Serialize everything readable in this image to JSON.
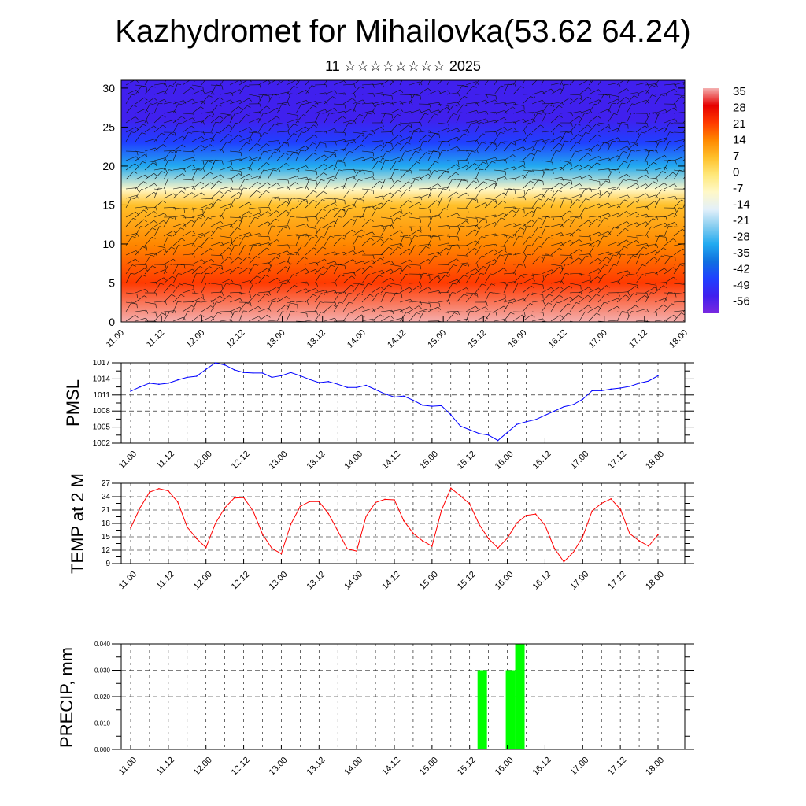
{
  "header": {
    "title": "Kazhydromet for Mihailovka(53.62 64.24)",
    "subtitle": "11 ☆☆☆☆☆☆☆☆ 2025"
  },
  "chart_data": [
    {
      "type": "heatmap",
      "name": "Temperature cross-section with wind barbs",
      "x_tick_labels": [
        "11.00",
        "11.12",
        "12.00",
        "12.12",
        "13.00",
        "13.12",
        "14.00",
        "14.12",
        "15.00",
        "15.12",
        "16.00",
        "16.12",
        "17.00",
        "17.12",
        "18.00"
      ],
      "y_ticks": [
        0,
        5,
        10,
        15,
        20,
        25,
        30
      ],
      "ylim": [
        0,
        31
      ],
      "colorbar_labels": [
        "35",
        "28",
        "21",
        "14",
        "7",
        "0",
        "-7",
        "-14",
        "-21",
        "-28",
        "-35",
        "-42",
        "-49",
        "-56"
      ],
      "colorbar_colors": [
        "#f4b0b0",
        "#e60000",
        "#ff3a00",
        "#ff8800",
        "#ffc02a",
        "#ffe87a",
        "#fff8c8",
        "#e3f0fa",
        "#86cdf0",
        "#22aaf0",
        "#1070e0",
        "#2040ff",
        "#4020ee",
        "#7a28e0"
      ],
      "layer_temps_by_height": [
        [
          0,
          28
        ],
        [
          5,
          20
        ],
        [
          10,
          12
        ],
        [
          15,
          2
        ],
        [
          17,
          -14
        ],
        [
          20,
          -30
        ],
        [
          23,
          -45
        ],
        [
          26,
          -52
        ],
        [
          31,
          -55
        ]
      ],
      "barbs": true
    },
    {
      "type": "line",
      "ylabel": "PMSL",
      "color": "#0000ff",
      "x_tick_labels": [
        "11.00",
        "11.12",
        "12.00",
        "12.12",
        "13.00",
        "13.12",
        "14.00",
        "14.12",
        "15.00",
        "15.12",
        "16.00",
        "16.12",
        "17.00",
        "17.12",
        "18.00"
      ],
      "y_ticks": [
        1002,
        1005,
        1008,
        1011,
        1014,
        1017
      ],
      "ylim": [
        1002,
        1017
      ],
      "x": [
        0,
        3,
        6,
        9,
        12,
        15,
        18,
        21,
        24,
        27,
        30,
        33,
        36,
        39,
        42,
        45,
        48,
        51,
        54,
        57,
        60,
        63,
        66,
        69,
        72,
        75,
        78,
        81,
        84,
        87,
        90,
        93,
        96,
        99,
        102,
        105,
        108,
        111,
        114,
        117,
        120,
        123,
        126,
        129,
        132,
        135,
        138,
        141,
        144,
        147,
        150,
        153,
        156,
        159,
        162,
        165,
        168
      ],
      "values": [
        1011.7,
        1012.5,
        1013.2,
        1013.0,
        1013.2,
        1013.8,
        1014.3,
        1014.5,
        1015.8,
        1017.0,
        1016.6,
        1015.7,
        1015.2,
        1015.1,
        1015.1,
        1014.3,
        1014.6,
        1015.2,
        1014.6,
        1013.9,
        1013.3,
        1013.5,
        1013.0,
        1012.4,
        1012.4,
        1012.8,
        1012.0,
        1011.2,
        1010.6,
        1010.8,
        1010.0,
        1009.1,
        1008.9,
        1009.0,
        1007.3,
        1005.2,
        1004.5,
        1003.8,
        1003.5,
        1002.5,
        1004.0,
        1005.5,
        1006.0,
        1006.4,
        1007.2,
        1008.0,
        1008.8,
        1009.2,
        1010.2,
        1011.8,
        1011.8,
        1012.1,
        1012.3,
        1012.6,
        1013.2,
        1013.6,
        1014.6
      ]
    },
    {
      "type": "line",
      "ylabel": "TEMP at 2 M",
      "color": "#ff0000",
      "x_tick_labels": [
        "11.00",
        "11.12",
        "12.00",
        "12.12",
        "13.00",
        "13.12",
        "14.00",
        "14.12",
        "15.00",
        "15.12",
        "16.00",
        "16.12",
        "17.00",
        "17.12",
        "18.00"
      ],
      "y_ticks": [
        9,
        12,
        15,
        18,
        21,
        24,
        27
      ],
      "ylim": [
        9,
        27
      ],
      "x": [
        0,
        3,
        6,
        9,
        12,
        15,
        18,
        21,
        24,
        27,
        30,
        33,
        36,
        39,
        42,
        45,
        48,
        51,
        54,
        57,
        60,
        63,
        66,
        69,
        72,
        75,
        78,
        81,
        84,
        87,
        90,
        93,
        96,
        99,
        102,
        105,
        108,
        111,
        114,
        117,
        120,
        123,
        126,
        129,
        132,
        135,
        138,
        141,
        144,
        147,
        150,
        153,
        156,
        159,
        162,
        165,
        168
      ],
      "values": [
        17.0,
        21.5,
        25.0,
        25.8,
        25.3,
        22.8,
        17.2,
        14.6,
        12.6,
        18.0,
        21.5,
        23.7,
        23.8,
        20.8,
        15.6,
        12.4,
        11.2,
        17.8,
        21.8,
        22.9,
        22.9,
        20.2,
        16.3,
        12.3,
        11.8,
        19.6,
        22.7,
        23.4,
        23.3,
        18.6,
        15.8,
        14.1,
        12.9,
        20.9,
        25.9,
        24.2,
        22.4,
        17.8,
        14.6,
        12.5,
        14.7,
        18.1,
        19.8,
        20.1,
        17.6,
        12.4,
        9.4,
        11.5,
        15.0,
        20.8,
        22.5,
        23.5,
        21.2,
        15.7,
        14.1,
        12.9,
        15.5
      ]
    },
    {
      "type": "bar",
      "ylabel": "PRECIP, mm",
      "color": "#00ff00",
      "x_tick_labels": [
        "11.00",
        "11.12",
        "12.00",
        "12.12",
        "13.00",
        "13.12",
        "14.00",
        "14.12",
        "15.00",
        "15.12",
        "16.00",
        "16.12",
        "17.00",
        "17.12",
        "18.00"
      ],
      "y_ticks": [
        "0.000",
        "0.010",
        "0.020",
        "0.030",
        "0.040"
      ],
      "ylim": [
        0,
        0.04
      ],
      "bars": [
        {
          "x": 111,
          "value": 0.03
        },
        {
          "x": 120,
          "value": 0.03
        },
        {
          "x": 123,
          "value": 0.04
        }
      ]
    }
  ]
}
